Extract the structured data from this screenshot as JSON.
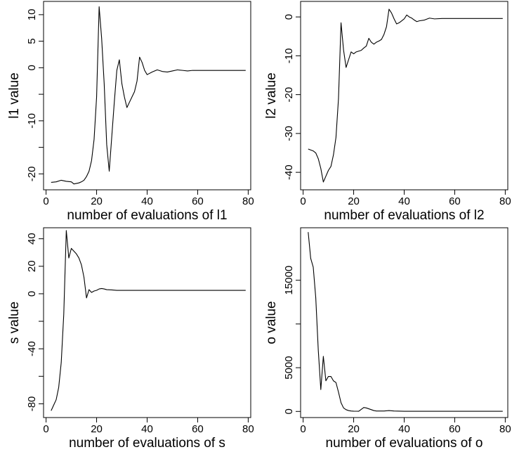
{
  "chart_data": [
    {
      "type": "line",
      "xlabel": "number of evaluations of  l1",
      "ylabel": "l1 value",
      "xlim": [
        -1,
        81
      ],
      "ylim": [
        -23,
        12.5
      ],
      "xticks": [
        0,
        20,
        40,
        60,
        80
      ],
      "yticks": [
        -20,
        -15,
        -10,
        -5,
        0,
        5,
        10
      ],
      "ytick_labels": [
        "-20",
        "",
        "-10",
        "",
        "0",
        "5",
        "10"
      ],
      "grid": false,
      "series": [
        {
          "x": [
            2,
            4,
            6,
            8,
            10,
            11,
            12,
            13,
            14,
            15,
            16,
            17,
            18,
            19,
            20,
            21,
            22,
            23,
            24,
            25,
            26,
            27,
            28,
            29,
            30,
            31,
            32,
            33,
            34,
            35,
            36,
            37,
            38,
            39,
            40,
            42,
            44,
            46,
            48,
            50,
            52,
            54,
            56,
            58,
            60,
            65,
            70,
            75,
            79
          ],
          "y": [
            -21.6,
            -21.5,
            -21.2,
            -21.4,
            -21.5,
            -21.9,
            -21.8,
            -21.7,
            -21.5,
            -21.2,
            -20.5,
            -19.5,
            -17.5,
            -13.5,
            -5.5,
            11.5,
            5.5,
            -3.0,
            -14.5,
            -19.5,
            -13.0,
            -6.5,
            -0.5,
            1.5,
            -3.0,
            -5.5,
            -7.5,
            -6.5,
            -5.5,
            -4.5,
            -2.5,
            2.0,
            1.0,
            -0.5,
            -1.3,
            -0.8,
            -0.4,
            -0.7,
            -0.8,
            -0.6,
            -0.4,
            -0.5,
            -0.6,
            -0.5,
            -0.5,
            -0.5,
            -0.5,
            -0.5,
            -0.5
          ]
        }
      ]
    },
    {
      "type": "line",
      "xlabel": "number of evaluations of  l2",
      "ylabel": "l2 value",
      "xlim": [
        -1,
        81
      ],
      "ylim": [
        -44.5,
        4.0
      ],
      "xticks": [
        0,
        20,
        40,
        60,
        80
      ],
      "yticks": [
        -40,
        -30,
        -20,
        -10,
        0
      ],
      "ytick_labels": [
        "-40",
        "-30",
        "-20",
        "-10",
        "0"
      ],
      "grid": false,
      "series": [
        {
          "x": [
            2,
            4,
            5,
            6,
            7,
            8,
            9,
            10,
            11,
            12,
            13,
            14,
            15,
            16,
            17,
            18,
            19,
            20,
            21,
            22,
            23,
            24,
            25,
            26,
            27,
            28,
            29,
            30,
            31,
            32,
            33,
            34,
            35,
            36,
            37,
            38,
            39,
            40,
            41,
            42,
            43,
            44,
            45,
            46,
            48,
            50,
            52,
            55,
            60,
            65,
            70,
            75,
            79
          ],
          "y": [
            -34,
            -34.5,
            -35,
            -36.5,
            -39,
            -42.5,
            -41,
            -39.5,
            -38.5,
            -35.5,
            -31,
            -21,
            -1.5,
            -8.5,
            -13,
            -11,
            -9,
            -9.5,
            -9,
            -8.8,
            -8.6,
            -8,
            -7.5,
            -5.5,
            -6.5,
            -7,
            -6.5,
            -6.2,
            -5.8,
            -4.5,
            -2.5,
            2.0,
            1.0,
            -0.5,
            -1.8,
            -1.5,
            -1.0,
            -0.5,
            0.5,
            0.0,
            -0.3,
            -0.8,
            -1.2,
            -1.0,
            -0.8,
            -0.3,
            -0.5,
            -0.4,
            -0.4,
            -0.4,
            -0.4,
            -0.4,
            -0.4
          ]
        }
      ]
    },
    {
      "type": "line",
      "xlabel": "number of evaluations of  s",
      "ylabel": "s value",
      "xlim": [
        -1,
        81
      ],
      "ylim": [
        -90,
        48
      ],
      "xticks": [
        0,
        20,
        40,
        60,
        80
      ],
      "yticks": [
        -80,
        -60,
        -40,
        -20,
        0,
        20,
        40
      ],
      "ytick_labels": [
        "-80",
        "",
        "-40",
        "",
        "0",
        "20",
        "40"
      ],
      "grid": false,
      "series": [
        {
          "x": [
            2,
            3,
            4,
            5,
            6,
            7,
            8,
            9,
            10,
            11,
            12,
            13,
            14,
            15,
            16,
            17,
            18,
            19,
            20,
            21,
            22,
            23,
            24,
            26,
            28,
            30,
            35,
            40,
            50,
            60,
            70,
            79
          ],
          "y": [
            -85,
            -81,
            -77,
            -68,
            -50,
            -15,
            46,
            26,
            33,
            31,
            29,
            26,
            21,
            12,
            -3,
            3,
            1.0,
            2.0,
            2.5,
            3.5,
            3.8,
            3.5,
            3.0,
            2.8,
            2.5,
            2.5,
            2.5,
            2.5,
            2.5,
            2.5,
            2.5,
            2.5
          ]
        }
      ]
    },
    {
      "type": "line",
      "xlabel": "number of evaluations of  o",
      "ylabel": "o value",
      "xlim": [
        -1,
        81
      ],
      "ylim": [
        -700,
        21000
      ],
      "xticks": [
        0,
        20,
        40,
        60,
        80
      ],
      "yticks": [
        0,
        5000,
        10000,
        15000
      ],
      "ytick_labels": [
        "0",
        "5000",
        "",
        "15000"
      ],
      "grid": false,
      "series": [
        {
          "x": [
            2,
            3,
            4,
            5,
            6,
            7,
            8,
            9,
            10,
            11,
            12,
            13,
            14,
            15,
            16,
            17,
            18,
            19,
            20,
            22,
            24,
            25,
            26,
            27,
            28,
            29,
            30,
            32,
            34,
            36,
            40,
            50,
            60,
            70,
            79
          ],
          "y": [
            20500,
            17500,
            16500,
            13000,
            7000,
            2500,
            6300,
            3500,
            4000,
            4000,
            3500,
            3300,
            2200,
            1000,
            400,
            200,
            100,
            50,
            30,
            20,
            450,
            400,
            300,
            200,
            100,
            50,
            50,
            50,
            100,
            50,
            20,
            20,
            20,
            20,
            20
          ]
        }
      ]
    }
  ]
}
